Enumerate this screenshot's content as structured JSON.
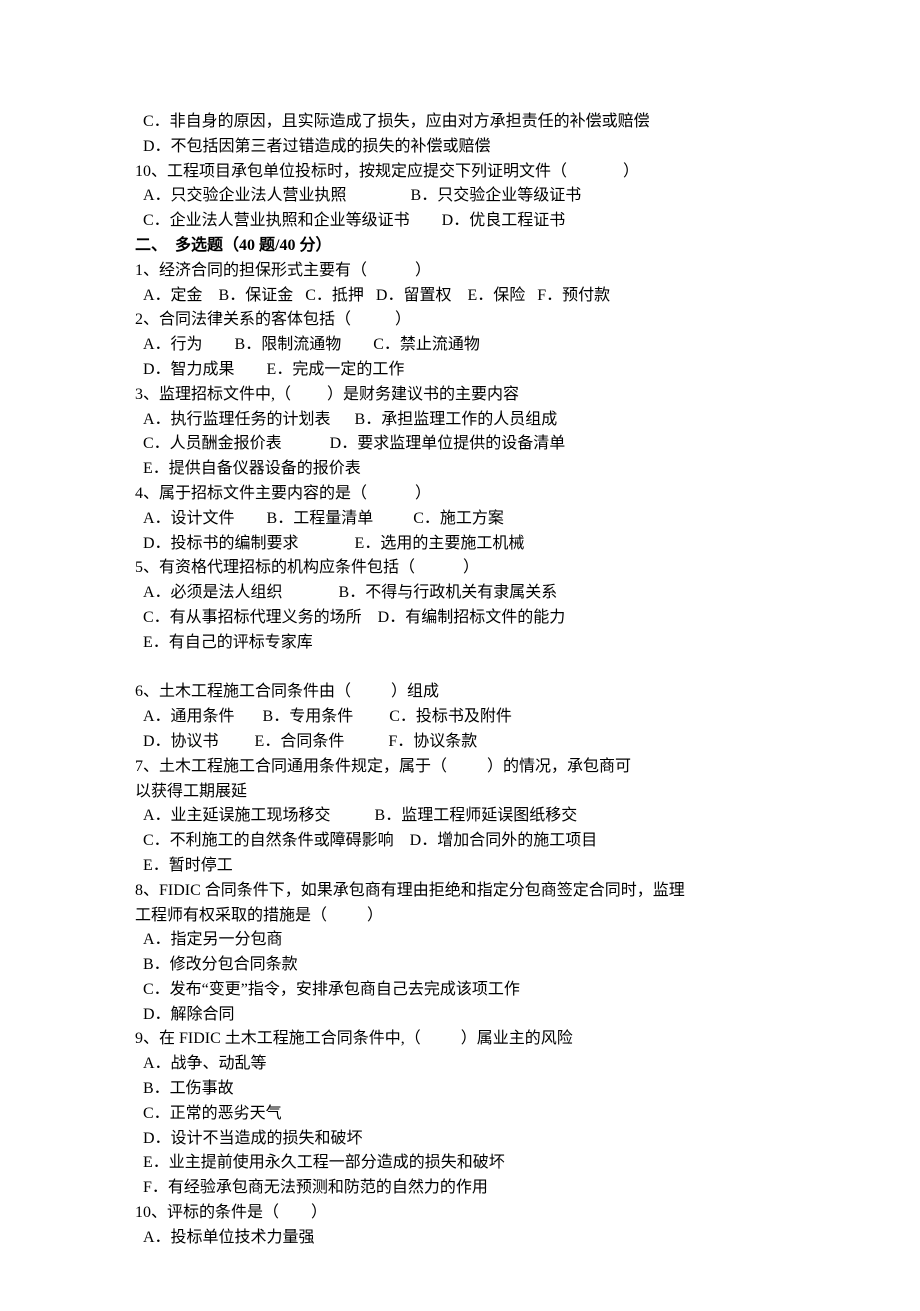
{
  "font": {
    "family": "SimSun",
    "size_pt": 12,
    "color": "#000000",
    "bold_weight": 700
  },
  "background_color": "#ffffff",
  "lines": [
    {
      "indent": 1,
      "text": "C．非自身的原因，且实际造成了损失，应由对方承担责任的补偿或赔偿"
    },
    {
      "indent": 1,
      "text": "D．不包括因第三者过错造成的损失的补偿或赔偿"
    },
    {
      "indent": 0,
      "text": "10、工程项目承包单位投标时，按规定应提交下列证明文件（              ）"
    },
    {
      "indent": 1,
      "text": "A．只交验企业法人营业执照                B．只交验企业等级证书"
    },
    {
      "indent": 1,
      "text": "C．企业法人营业执照和企业等级证书        D．优良工程证书"
    },
    {
      "indent": 0,
      "bold": true,
      "text": "二、  多选题（40 题/40 分）"
    },
    {
      "indent": 0,
      "text": "1、经济合同的担保形式主要有（            ）"
    },
    {
      "indent": 1,
      "text": "A．定金    B．保证金   C．抵押   D．留置权    E．保险   F．预付款"
    },
    {
      "indent": 0,
      "text": "2、合同法律关系的客体包括（           ）"
    },
    {
      "indent": 1,
      "text": "A．行为        B．限制流通物        C．禁止流通物"
    },
    {
      "indent": 1,
      "text": "D．智力成果        E．完成一定的工作"
    },
    {
      "indent": 0,
      "text": "3、监理招标文件中,（         ）是财务建议书的主要内容"
    },
    {
      "indent": 1,
      "text": "A．执行监理任务的计划表      B．承担监理工作的人员组成"
    },
    {
      "indent": 1,
      "text": "C．人员酬金报价表            D．要求监理单位提供的设备清单"
    },
    {
      "indent": 1,
      "text": "E．提供自备仪器设备的报价表"
    },
    {
      "indent": 0,
      "text": "4、属于招标文件主要内容的是（            ）"
    },
    {
      "indent": 1,
      "text": "A．设计文件        B．工程量清单          C．施工方案"
    },
    {
      "indent": 1,
      "text": "D．投标书的编制要求              E．选用的主要施工机械"
    },
    {
      "indent": 0,
      "text": "5、有资格代理招标的机构应条件包括（            ）"
    },
    {
      "indent": 1,
      "text": "A．必须是法人组织              B．不得与行政机关有隶属关系"
    },
    {
      "indent": 1,
      "text": "C．有从事招标代理义务的场所    D．有编制招标文件的能力"
    },
    {
      "indent": 1,
      "text": "E．有自己的评标专家库"
    },
    {
      "indent": 0,
      "text": " "
    },
    {
      "indent": 0,
      "text": "6、土木工程施工合同条件由（          ）组成"
    },
    {
      "indent": 1,
      "text": "A．通用条件       B．专用条件         C．投标书及附件"
    },
    {
      "indent": 1,
      "text": "D．协议书         E．合同条件           F．协议条款"
    },
    {
      "indent": 0,
      "text": "7、土木工程施工合同通用条件规定，属于（          ）的情况，承包商可"
    },
    {
      "indent": 0,
      "text": "以获得工期展延"
    },
    {
      "indent": 1,
      "text": "A．业主延误施工现场移交           B．监理工程师延误图纸移交"
    },
    {
      "indent": 1,
      "text": "C．不利施工的自然条件或障碍影响    D．增加合同外的施工项目"
    },
    {
      "indent": 1,
      "text": "E．暂时停工"
    },
    {
      "indent": 0,
      "text": "8、FIDIC 合同条件下，如果承包商有理由拒绝和指定分包商签定合同时，监理"
    },
    {
      "indent": 0,
      "text": "工程师有权采取的措施是（          ）"
    },
    {
      "indent": 1,
      "text": "A．指定另一分包商"
    },
    {
      "indent": 1,
      "text": "B．修改分包合同条款"
    },
    {
      "indent": 1,
      "text": "C．发布“变更”指令，安排承包商自己去完成该项工作"
    },
    {
      "indent": 1,
      "text": "D．解除合同"
    },
    {
      "indent": 0,
      "text": "9、在 FIDIC 土木工程施工合同条件中,（          ）属业主的风险"
    },
    {
      "indent": 1,
      "text": "A．战争、动乱等"
    },
    {
      "indent": 1,
      "text": "B．工伤事故"
    },
    {
      "indent": 1,
      "text": "C．正常的恶劣天气"
    },
    {
      "indent": 1,
      "text": "D．设计不当造成的损失和破坏"
    },
    {
      "indent": 1,
      "text": "E．业主提前使用永久工程一部分造成的损失和破坏"
    },
    {
      "indent": 1,
      "text": "F．有经验承包商无法预测和防范的自然力的作用"
    },
    {
      "indent": 0,
      "text": "10、评标的条件是（        ）"
    },
    {
      "indent": 1,
      "text": "A．投标单位技术力量强"
    }
  ]
}
